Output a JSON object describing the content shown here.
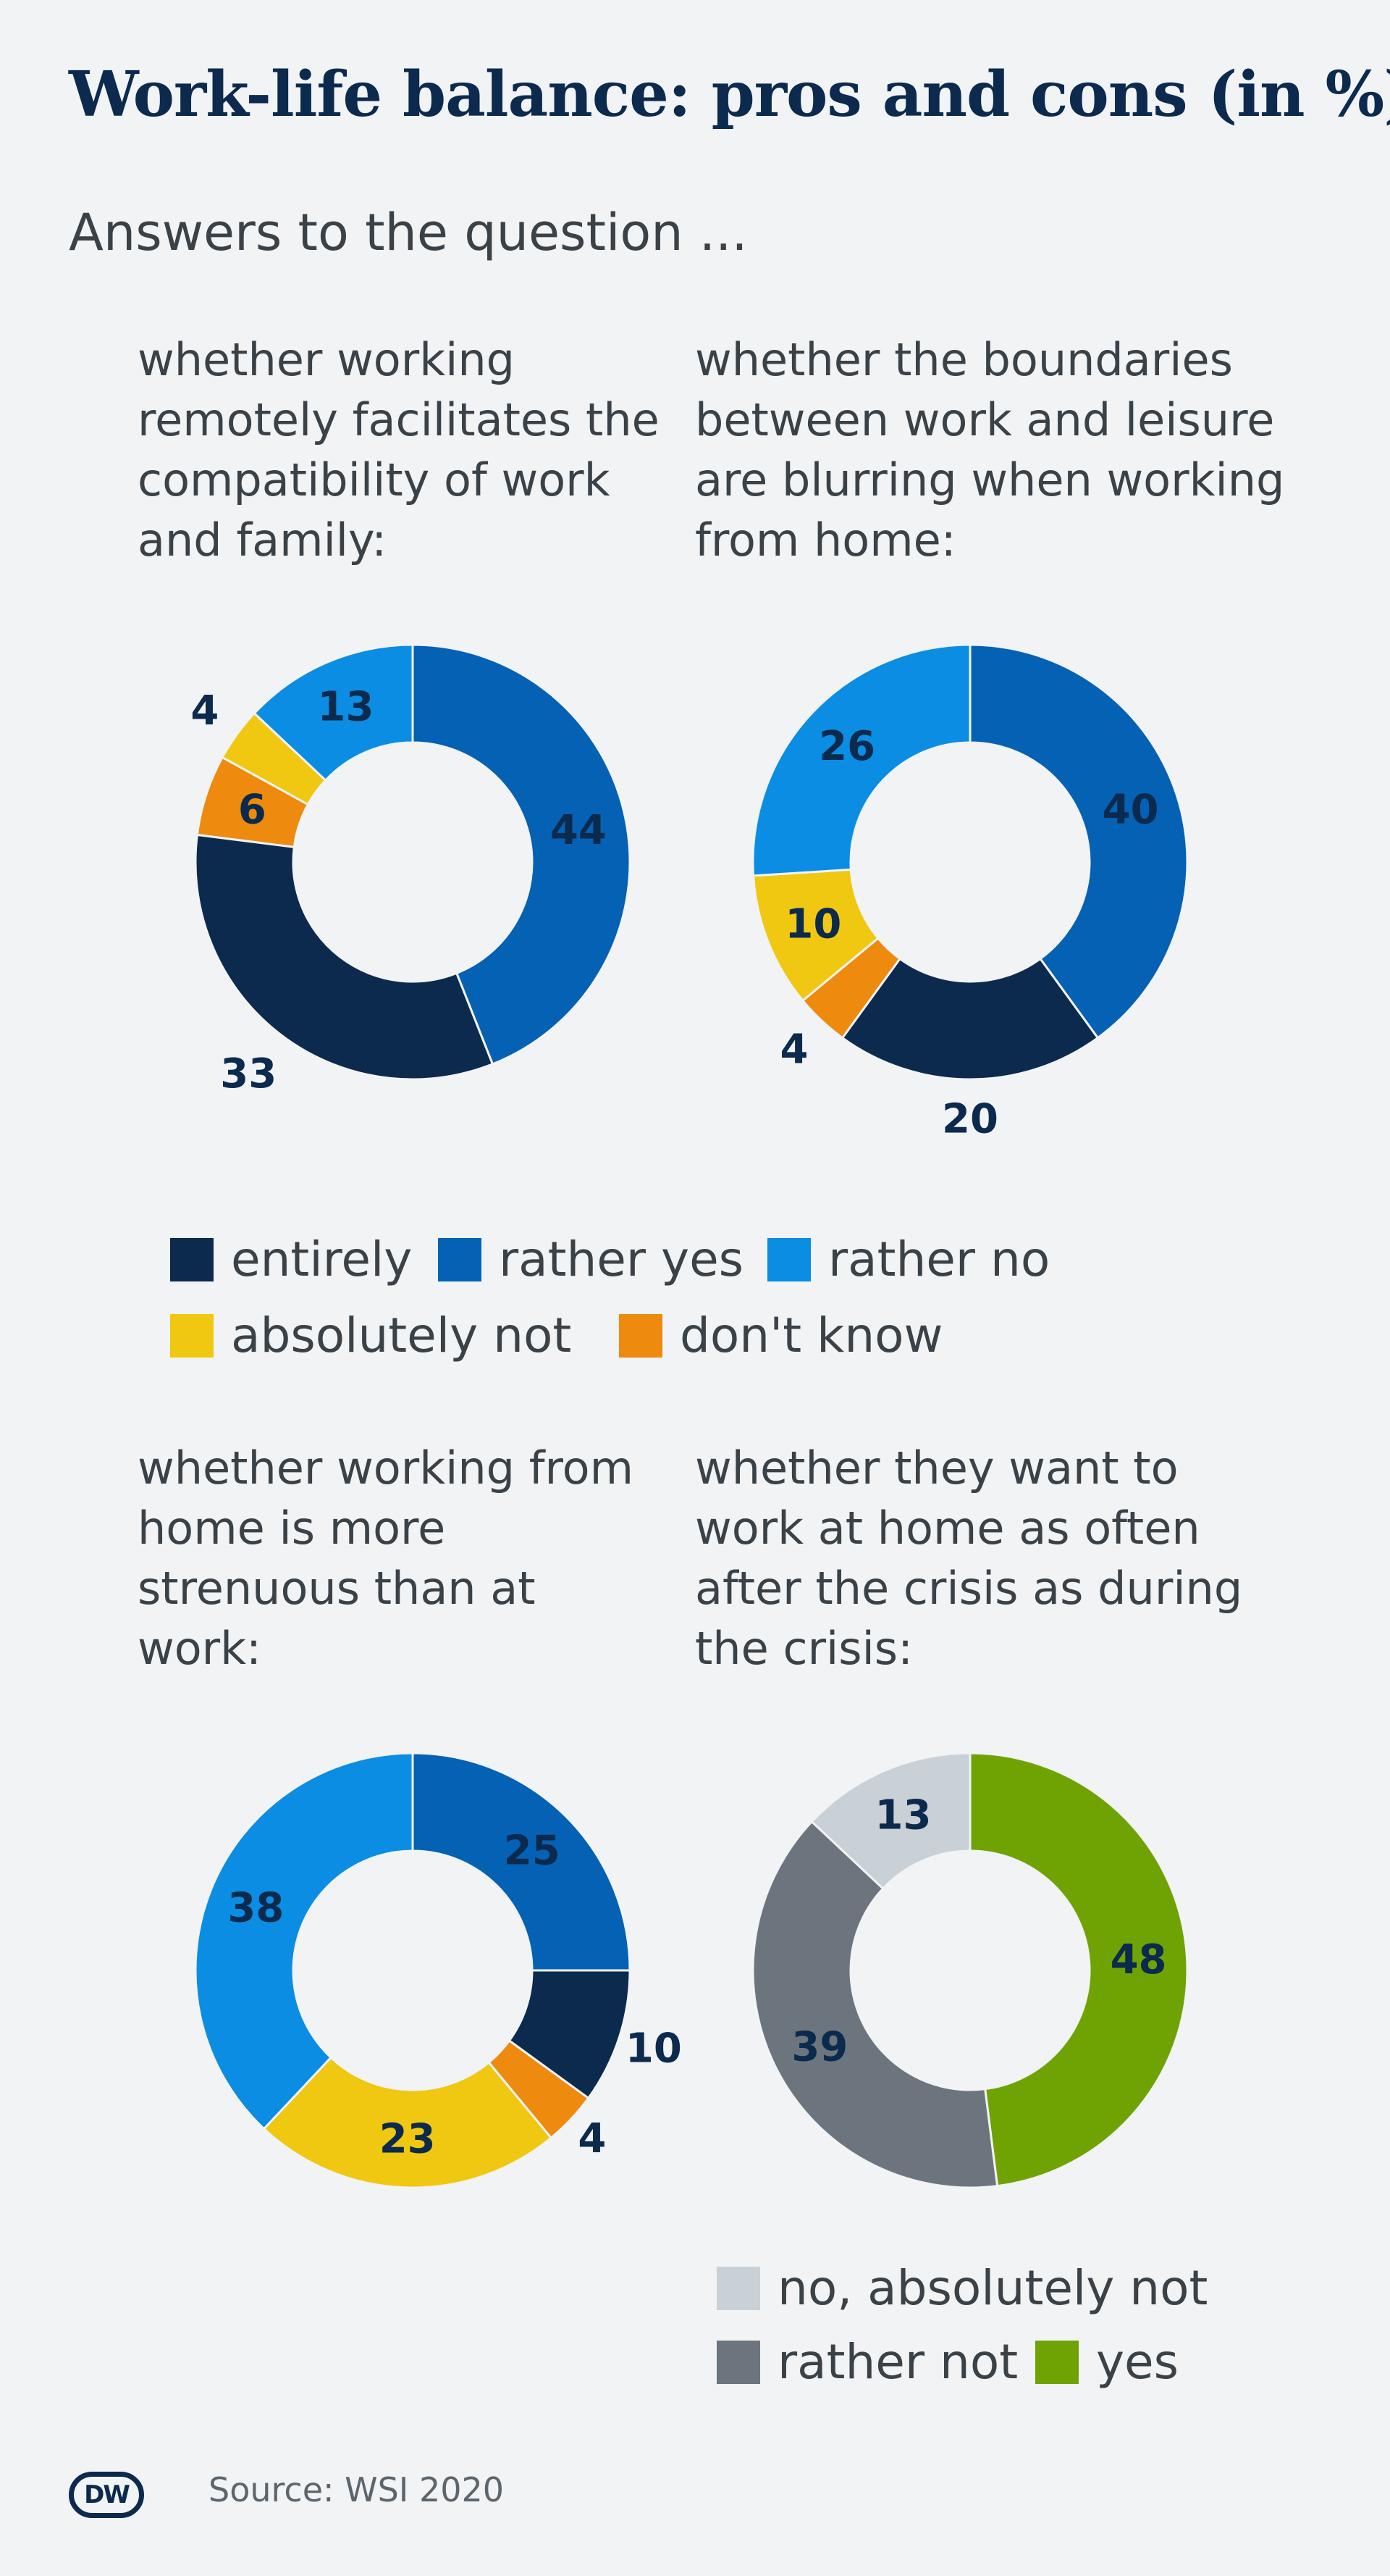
{
  "title": "Work-life balance: pros and cons (in %)",
  "subtitle": "Answers to the question ...",
  "source": "Source: WSI 2020",
  "logo_text": "DW",
  "colors": {
    "entirely": "#0b2a4d",
    "rather_yes": "#0461b4",
    "rather_no": "#0a8de3",
    "absolutely_not": "#f0c711",
    "dont_know": "#ee8a0d",
    "no_absolutely_not": "#c9d0d6",
    "rather_not": "#6c757d",
    "yes": "#6fa304"
  },
  "legend_top": [
    {
      "key": "entirely",
      "label": "entirely"
    },
    {
      "key": "rather_yes",
      "label": "rather yes"
    },
    {
      "key": "rather_no",
      "label": "rather no"
    },
    {
      "key": "absolutely_not",
      "label": "absolutely not"
    },
    {
      "key": "dont_know",
      "label": "don't know"
    }
  ],
  "legend_bottom": [
    {
      "key": "no_absolutely_not",
      "label": "no, absolutely not"
    },
    {
      "key": "rather_not",
      "label": "rather not"
    },
    {
      "key": "yes",
      "label": "yes"
    }
  ],
  "chart_data": [
    {
      "type": "pie",
      "title": "whether working remotely facilitates the compatibility of work and family:",
      "categories": [
        "rather yes",
        "entirely",
        "don't know",
        "absolutely not",
        "rather no"
      ],
      "values": [
        44,
        33,
        6,
        4,
        13
      ],
      "color_keys": [
        "rather_yes",
        "entirely",
        "dont_know",
        "absolutely_not",
        "rather_no"
      ]
    },
    {
      "type": "pie",
      "title": "whether the boundaries between work and leisure are blurring when working from home:",
      "categories": [
        "rather yes",
        "entirely",
        "don't know",
        "absolutely not",
        "rather no"
      ],
      "values": [
        40,
        20,
        4,
        10,
        26
      ],
      "color_keys": [
        "rather_yes",
        "entirely",
        "dont_know",
        "absolutely_not",
        "rather_no"
      ]
    },
    {
      "type": "pie",
      "title": "whether working from home is more strenuous than at work:",
      "categories": [
        "rather yes",
        "entirely",
        "don't know",
        "absolutely not",
        "rather no"
      ],
      "values": [
        25,
        10,
        4,
        23,
        38
      ],
      "color_keys": [
        "rather_yes",
        "entirely",
        "dont_know",
        "absolutely_not",
        "rather_no"
      ]
    },
    {
      "type": "pie",
      "title": "whether they want to work at home as often after the crisis as during the crisis:",
      "categories": [
        "yes",
        "rather not",
        "no, absolutely not"
      ],
      "values": [
        48,
        39,
        13
      ],
      "color_keys": [
        "yes",
        "rather_not",
        "no_absolutely_not"
      ]
    }
  ]
}
